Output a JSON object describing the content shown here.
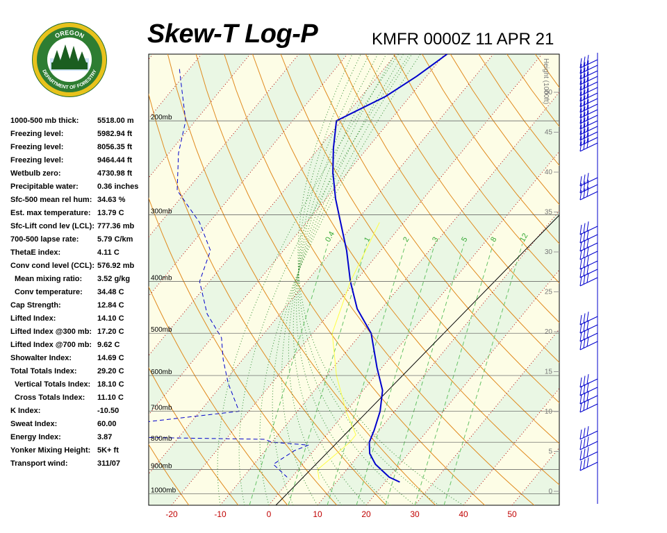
{
  "header": {
    "title": "Skew-T Log-P",
    "subtitle": "KMFR 0000Z 11 APR 21",
    "logo_text_top": "OREGON",
    "logo_text_bottom": "DEPARTMENT OF FORESTRY"
  },
  "stats": [
    {
      "label": "1000-500 mb thick:",
      "value": "5518.00 m"
    },
    {
      "label": "Freezing level:",
      "value": "5982.94 ft"
    },
    {
      "label": "Freezing level:",
      "value": "8056.35 ft"
    },
    {
      "label": "Freezing level:",
      "value": "9464.44 ft"
    },
    {
      "label": "Wetbulb zero:",
      "value": "4730.98 ft"
    },
    {
      "label": "Precipitable water:",
      "value": "0.36 inches"
    },
    {
      "label": "Sfc-500 mean rel hum:",
      "value": "34.63 %"
    },
    {
      "label": "Est. max temperature:",
      "value": "13.79 C"
    },
    {
      "label": "Sfc-Lift cond lev (LCL):",
      "value": "777.36 mb"
    },
    {
      "label": "700-500 lapse rate:",
      "value": "5.79 C/km"
    },
    {
      "label": "ThetaE index:",
      "value": "4.11 C"
    },
    {
      "label": "Conv cond level (CCL):",
      "value": "576.92 mb"
    },
    {
      "label": "Mean mixing ratio:",
      "value": "3.52 g/kg",
      "indent": true
    },
    {
      "label": "Conv temperature:",
      "value": "34.48 C",
      "indent": true
    },
    {
      "label": "Cap Strength:",
      "value": "12.84 C"
    },
    {
      "label": "Lifted Index:",
      "value": "14.10 C"
    },
    {
      "label": "Lifted Index @300 mb:",
      "value": "17.20 C"
    },
    {
      "label": "Lifted Index @700 mb:",
      "value": "9.62 C"
    },
    {
      "label": "Showalter Index:",
      "value": "14.69 C"
    },
    {
      "label": "Total Totals Index:",
      "value": "29.20 C"
    },
    {
      "label": "Vertical Totals Index:",
      "value": "18.10 C",
      "indent": true
    },
    {
      "label": "Cross Totals Index:",
      "value": "11.10 C",
      "indent": true
    },
    {
      "label": "K Index:",
      "value": "-10.50"
    },
    {
      "label": "Sweat Index:",
      "value": "60.00"
    },
    {
      "label": "Energy Index:",
      "value": "3.87"
    },
    {
      "label": "Yonker Mixing Height:",
      "value": "5K+ ft"
    },
    {
      "label": "Transport wind:",
      "value": "311/07"
    }
  ],
  "chart_data": {
    "type": "line",
    "title": "Skew-T Log-P",
    "subtitle": "KMFR 0000Z 11 APR 21",
    "x_ticks": [
      -20,
      -10,
      0,
      10,
      20,
      30,
      40,
      50
    ],
    "x_unit": "C",
    "pressure_levels": [
      {
        "label": "200mb",
        "p": 200
      },
      {
        "label": "300mb",
        "p": 300
      },
      {
        "label": "400mb",
        "p": 400
      },
      {
        "label": "500mb",
        "p": 500
      },
      {
        "label": "600mb",
        "p": 600
      },
      {
        "label": "700mb",
        "p": 700
      },
      {
        "label": "800mb",
        "p": 800
      },
      {
        "label": "900mb",
        "p": 900
      },
      {
        "label": "1000mb",
        "p": 1000
      }
    ],
    "height_axis_label": "Height (1000ft)",
    "height_ticks": [
      "50",
      "45",
      "40",
      "35",
      "30",
      "25",
      "20",
      "15",
      "10",
      "5",
      "0"
    ],
    "mixing_ratio_labels": [
      "0.4",
      "1",
      "2",
      "3",
      "5",
      "8",
      "12"
    ],
    "series": [
      {
        "role": "temperature",
        "color": "#0000cc",
        "style": "solid",
        "points": [
          [
            -39.5,
            150
          ],
          [
            -42,
            165
          ],
          [
            -45,
            180
          ],
          [
            -51,
            200
          ],
          [
            -47,
            225
          ],
          [
            -43,
            250
          ],
          [
            -38,
            280
          ],
          [
            -33,
            310
          ],
          [
            -27,
            350
          ],
          [
            -21,
            400
          ],
          [
            -15,
            450
          ],
          [
            -8,
            500
          ],
          [
            -1,
            580
          ],
          [
            4,
            640
          ],
          [
            7,
            700
          ],
          [
            9,
            760
          ],
          [
            10,
            800
          ],
          [
            12,
            840
          ],
          [
            15,
            880
          ],
          [
            20,
            930
          ],
          [
            23,
            950
          ]
        ]
      },
      {
        "role": "dewpoint",
        "color": "#0000cc",
        "style": "dashed",
        "points": [
          [
            -92,
            160
          ],
          [
            -88,
            175
          ],
          [
            -82,
            200
          ],
          [
            -78,
            230
          ],
          [
            -72,
            270
          ],
          [
            -62,
            310
          ],
          [
            -55,
            350
          ],
          [
            -52,
            400
          ],
          [
            -45,
            460
          ],
          [
            -38,
            510
          ],
          [
            -34,
            560
          ],
          [
            -29,
            620
          ],
          [
            -22,
            700
          ],
          [
            -58,
            770
          ],
          [
            -52,
            780
          ],
          [
            -12,
            790
          ],
          [
            -10,
            800
          ],
          [
            -2,
            810
          ],
          [
            -4,
            830
          ],
          [
            -6,
            880
          ],
          [
            -1,
            930
          ]
        ]
      },
      {
        "role": "parcel",
        "color": "#ffff44",
        "style": "solid",
        "points": [
          [
            -25,
            310
          ],
          [
            -21,
            400
          ],
          [
            -16,
            500
          ],
          [
            -8,
            600
          ],
          [
            0,
            700
          ],
          [
            6,
            775
          ],
          [
            6,
            800
          ],
          [
            5,
            850
          ],
          [
            4,
            900
          ],
          [
            6,
            940
          ]
        ]
      }
    ],
    "wind_barbs": "shown along right side, speeds vary with height"
  }
}
